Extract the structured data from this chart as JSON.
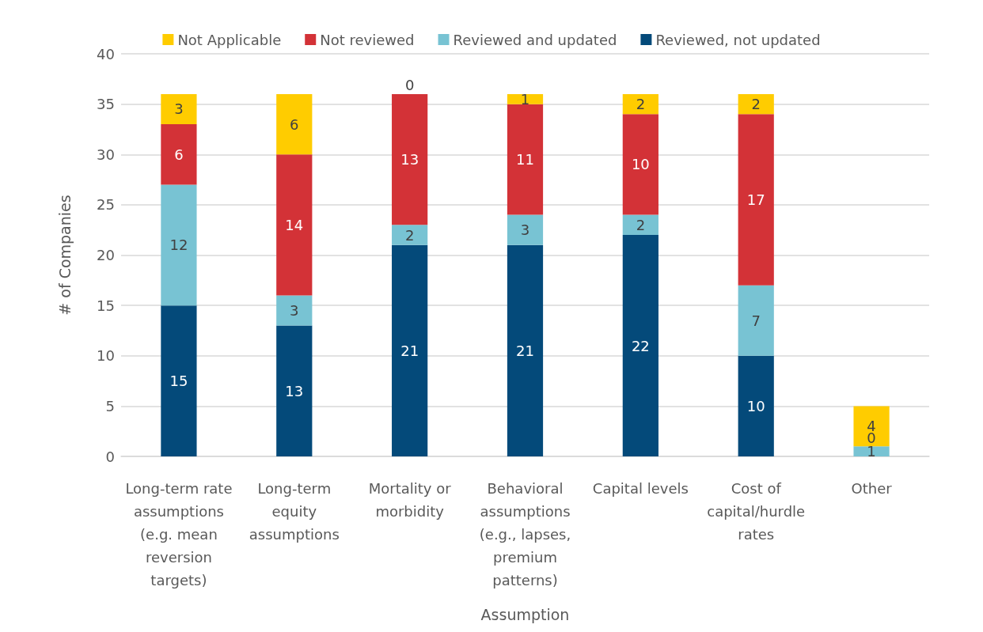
{
  "chart_data": {
    "type": "bar",
    "xlabel": "Assumption",
    "ylabel": "# of Companies",
    "stacked": true,
    "grid": "y",
    "legend": "top",
    "ylim": [
      0,
      40
    ],
    "yticks": [
      0,
      5,
      10,
      15,
      20,
      25,
      30,
      35,
      40
    ],
    "categories": [
      "Long-term rate assumptions (e.g. mean reversion targets)",
      "Long-term equity assumptions",
      "Mortality or morbidity",
      "Behavioral assumptions (e.g., lapses, premium patterns)",
      "Capital levels",
      "Cost of capital/hurdle rates",
      "Other"
    ],
    "series": [
      {
        "name": "Reviewed, not updated",
        "color": "#044a7a",
        "values": [
          15,
          13,
          21,
          21,
          22,
          10,
          0
        ],
        "value_labels": [
          "15",
          "13",
          "21",
          "21",
          "22",
          "10",
          null
        ]
      },
      {
        "name": "Reviewed and updated",
        "color": "#78c3d3",
        "values": [
          12,
          3,
          2,
          3,
          2,
          7,
          1
        ],
        "value_labels": [
          "12",
          "3",
          "2",
          "3",
          "2",
          "7",
          "1"
        ]
      },
      {
        "name": "Not reviewed",
        "color": "#d33237",
        "values": [
          6,
          14,
          13,
          11,
          10,
          17,
          0
        ],
        "value_labels": [
          "6",
          "14",
          "13",
          "11",
          "10",
          "17",
          "0"
        ]
      },
      {
        "name": "Not Applicable",
        "color": "#ffcc00",
        "values": [
          3,
          6,
          0,
          1,
          2,
          2,
          4
        ],
        "value_labels": [
          "3",
          "6",
          "0",
          "1",
          "2",
          "2",
          "4"
        ]
      }
    ]
  }
}
